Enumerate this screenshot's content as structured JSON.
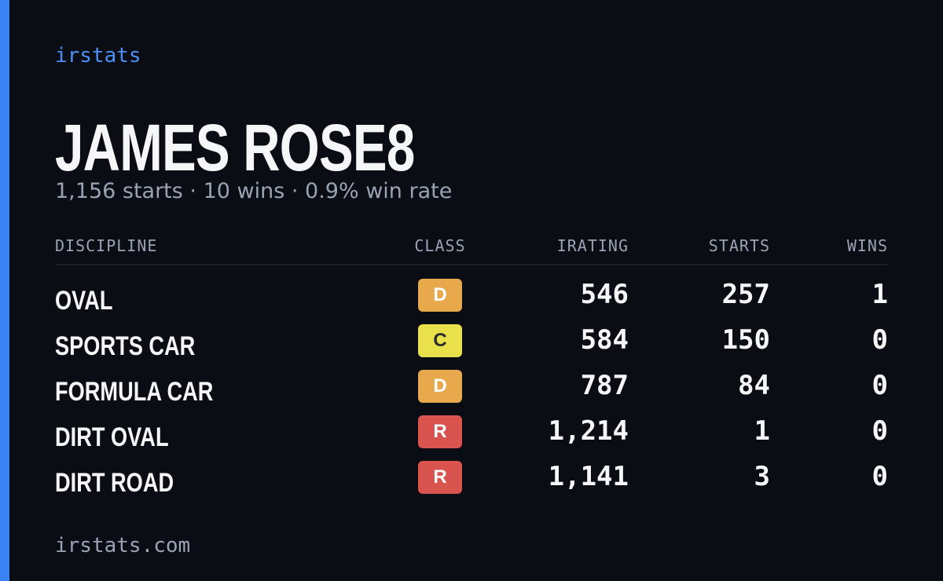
{
  "brand": "irstats",
  "driver": {
    "name": "JAMES ROSE8",
    "summary": "1,156 starts · 10 wins · 0.9% win rate"
  },
  "table": {
    "headers": [
      "DISCIPLINE",
      "CLASS",
      "IRATING",
      "STARTS",
      "WINS"
    ],
    "rows": [
      {
        "discipline": "OVAL",
        "class": "D",
        "class_color": "#e8a94d",
        "class_text_color": "#ffffff",
        "irating": "546",
        "starts": "257",
        "wins": "1"
      },
      {
        "discipline": "SPORTS CAR",
        "class": "C",
        "class_color": "#e9e04c",
        "class_text_color": "#2a2a2a",
        "irating": "584",
        "starts": "150",
        "wins": "0"
      },
      {
        "discipline": "FORMULA CAR",
        "class": "D",
        "class_color": "#e8a94d",
        "class_text_color": "#ffffff",
        "irating": "787",
        "starts": "84",
        "wins": "0"
      },
      {
        "discipline": "DIRT OVAL",
        "class": "R",
        "class_color": "#d9534f",
        "class_text_color": "#ffffff",
        "irating": "1,214",
        "starts": "1",
        "wins": "0"
      },
      {
        "discipline": "DIRT ROAD",
        "class": "R",
        "class_color": "#d9534f",
        "class_text_color": "#ffffff",
        "irating": "1,141",
        "starts": "3",
        "wins": "0"
      }
    ]
  },
  "footer": "irstats.com"
}
